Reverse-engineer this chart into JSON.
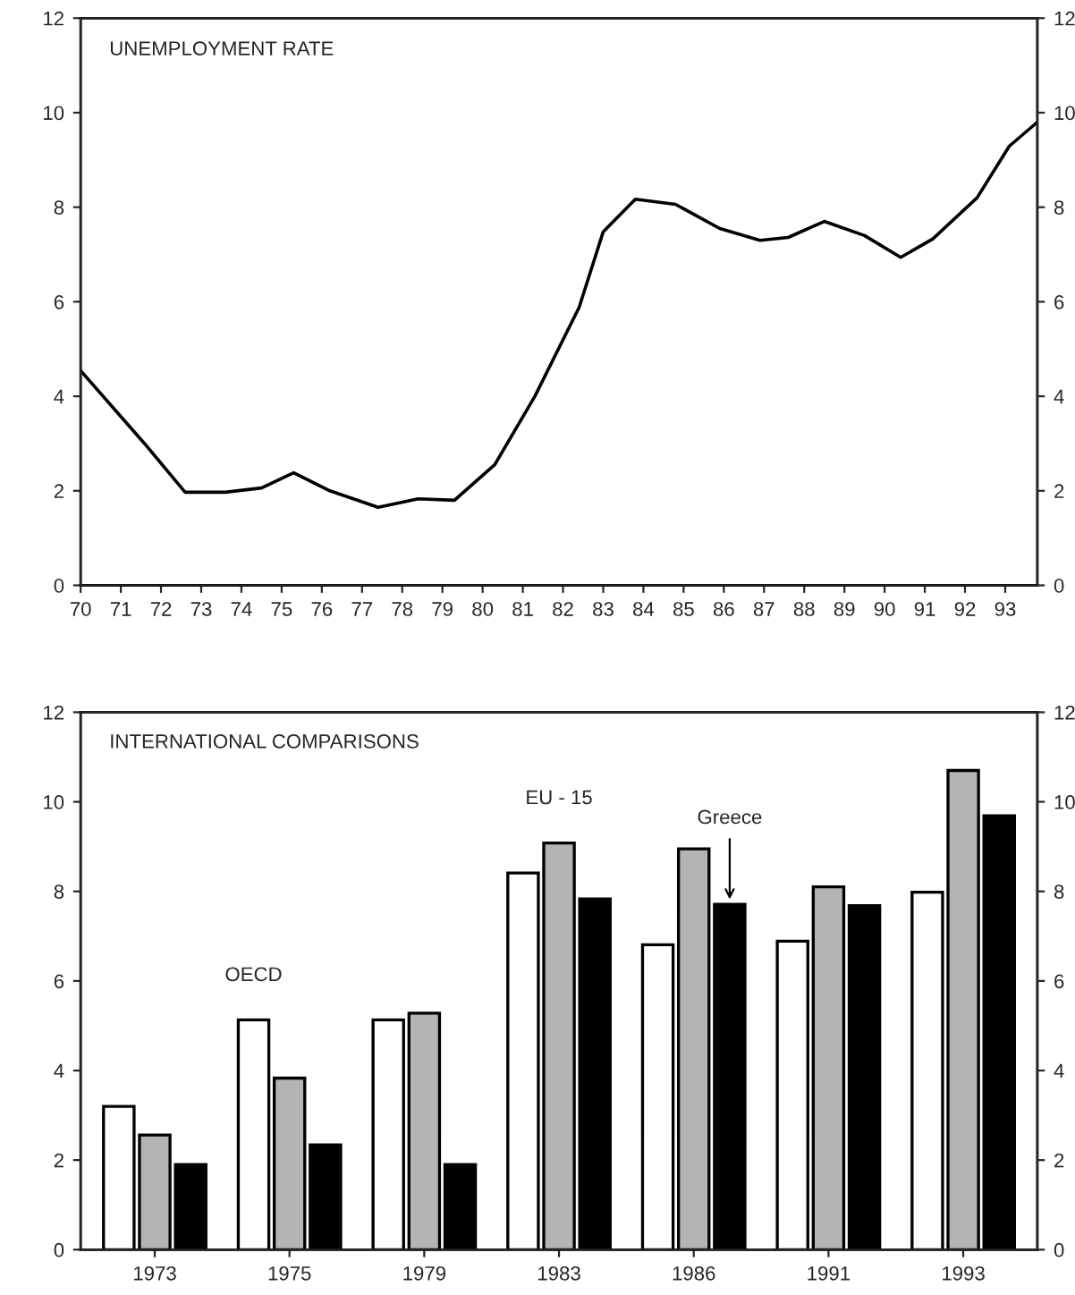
{
  "chart_data": [
    {
      "type": "line",
      "title": "UNEMPLOYMENT RATE",
      "x": [
        70,
        71.6,
        72.6,
        73.6,
        74.5,
        75.3,
        76.2,
        77.4,
        78.4,
        79.3,
        80.3,
        81.3,
        82.4,
        83.0,
        83.8,
        84.8,
        85.9,
        86.9,
        87.6,
        88.5,
        89.5,
        90.4,
        91.2,
        92.3,
        93.1,
        93.8
      ],
      "series": [
        {
          "color": "#000000",
          "values": [
            4.54,
            2.99,
            1.97,
            1.97,
            2.06,
            2.38,
            2.0,
            1.65,
            1.83,
            1.8,
            2.55,
            4.0,
            5.88,
            7.48,
            8.17,
            8.06,
            7.55,
            7.3,
            7.36,
            7.7,
            7.4,
            6.94,
            7.33,
            8.2,
            9.29,
            9.8
          ]
        }
      ],
      "xlim": [
        70,
        93.8
      ],
      "xticks": [
        70,
        71,
        72,
        73,
        74,
        75,
        76,
        77,
        78,
        79,
        80,
        81,
        82,
        83,
        84,
        85,
        86,
        87,
        88,
        89,
        90,
        91,
        92,
        93
      ],
      "ylim": [
        0,
        12
      ],
      "yticks": [
        0,
        2,
        4,
        6,
        8,
        10,
        12
      ],
      "y2lim": [
        0,
        12
      ],
      "y2ticks": [
        0,
        2,
        4,
        6,
        8,
        10,
        12
      ],
      "grid": false,
      "legend": false,
      "marker": "none",
      "line_style": "solid"
    },
    {
      "type": "bar",
      "title": "INTERNATIONAL COMPARISONS",
      "categories": [
        "1973",
        "1975",
        "1979",
        "1983",
        "1986",
        "1991",
        "1993"
      ],
      "series": [
        {
          "name": "OECD",
          "color": "#ffffff",
          "values": [
            3.2,
            5.13,
            5.13,
            8.41,
            6.81,
            6.89,
            7.98
          ]
        },
        {
          "name": "EU - 15",
          "color": "#b4b4b4",
          "values": [
            2.56,
            3.83,
            5.28,
            9.08,
            8.95,
            8.1,
            10.7
          ]
        },
        {
          "name": "Greece",
          "color": "#000000",
          "values": [
            1.9,
            2.34,
            1.9,
            7.83,
            7.71,
            7.68,
            9.69
          ]
        }
      ],
      "ylim": [
        0,
        12
      ],
      "yticks": [
        0,
        2,
        4,
        6,
        8,
        10,
        12
      ],
      "y2lim": [
        0,
        12
      ],
      "y2ticks": [
        0,
        2,
        4,
        6,
        8,
        10,
        12
      ],
      "grid": false,
      "legend": false
    }
  ]
}
